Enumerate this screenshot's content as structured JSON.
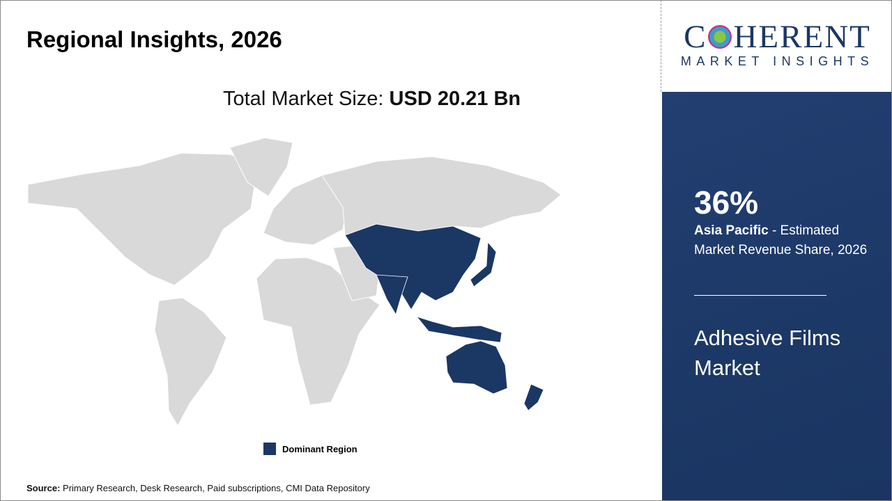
{
  "title": "Regional Insights, 2026",
  "total": {
    "label": "Total Market Size: ",
    "value": "USD 20.21 Bn"
  },
  "legend": {
    "label": "Dominant Region",
    "color": "#1b3764"
  },
  "source": {
    "label": "Source:",
    "text": " Primary Research, Desk Research, Paid subscriptions, CMI Data Repository"
  },
  "logo": {
    "word_pre": "C",
    "word_post": "HERENT",
    "sub": "MARKET INSIGHTS"
  },
  "panel": {
    "share": "36%",
    "region": "Asia Pacific",
    "desc": " - Estimated Market Revenue Share, 2026",
    "market": "Adhesive Films Market"
  },
  "map": {
    "dominant_region": "Asia Pacific",
    "land_color": "#d9d9d9",
    "dominant_color": "#1b3764"
  }
}
